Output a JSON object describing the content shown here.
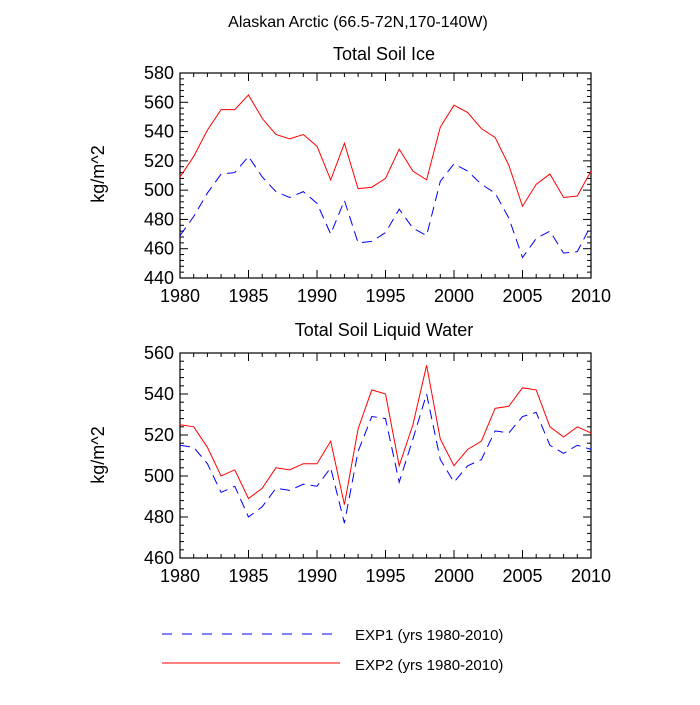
{
  "figure_title": "Alaskan Arctic (66.5-72N,170-140W)",
  "legend": {
    "entries": [
      {
        "label": "EXP1 (yrs 1980-2010)",
        "color": "#0000ff",
        "dash": "dashed"
      },
      {
        "label": "EXP2 (yrs 1980-2010)",
        "color": "#ff0000",
        "dash": "solid"
      }
    ]
  },
  "chart_data": [
    {
      "type": "line",
      "title": "Total Soil Ice",
      "xlabel": "",
      "ylabel": "kg/m^2",
      "xlim": [
        1980,
        2010
      ],
      "ylim": [
        440,
        580
      ],
      "x_ticks": [
        1980,
        1985,
        1990,
        1995,
        2000,
        2005,
        2010
      ],
      "y_ticks": [
        440,
        460,
        480,
        500,
        520,
        540,
        560,
        580
      ],
      "x": [
        1980,
        1981,
        1982,
        1983,
        1984,
        1985,
        1986,
        1987,
        1988,
        1989,
        1990,
        1991,
        1992,
        1993,
        1994,
        1995,
        1996,
        1997,
        1998,
        1999,
        2000,
        2001,
        2002,
        2003,
        2004,
        2005,
        2006,
        2007,
        2008,
        2009,
        2010
      ],
      "series": [
        {
          "name": "EXP1 (yrs 1980-2010)",
          "color": "#0000ff",
          "dash": "dashed",
          "values": [
            469,
            482,
            498,
            511,
            512,
            523,
            509,
            499,
            495,
            499,
            491,
            470,
            493,
            464,
            465,
            471,
            487,
            474,
            469,
            506,
            518,
            513,
            504,
            498,
            481,
            454,
            467,
            472,
            457,
            458,
            476
          ]
        },
        {
          "name": "EXP2 (yrs 1980-2010)",
          "color": "#ff0000",
          "dash": "solid",
          "values": [
            509,
            523,
            541,
            555,
            555,
            565,
            549,
            538,
            535,
            538,
            530,
            507,
            532,
            501,
            502,
            508,
            528,
            513,
            507,
            543,
            558,
            553,
            542,
            536,
            517,
            489,
            504,
            511,
            495,
            496,
            513
          ]
        }
      ]
    },
    {
      "type": "line",
      "title": "Total Soil Liquid Water",
      "xlabel": "",
      "ylabel": "kg/m^2",
      "xlim": [
        1980,
        2010
      ],
      "ylim": [
        460,
        560
      ],
      "x_ticks": [
        1980,
        1985,
        1990,
        1995,
        2000,
        2005,
        2010
      ],
      "y_ticks": [
        460,
        480,
        500,
        520,
        540,
        560
      ],
      "x": [
        1980,
        1981,
        1982,
        1983,
        1984,
        1985,
        1986,
        1987,
        1988,
        1989,
        1990,
        1991,
        1992,
        1993,
        1994,
        1995,
        1996,
        1997,
        1998,
        1999,
        2000,
        2001,
        2002,
        2003,
        2004,
        2005,
        2006,
        2007,
        2008,
        2009,
        2010
      ],
      "series": [
        {
          "name": "EXP1 (yrs 1980-2010)",
          "color": "#0000ff",
          "dash": "dashed",
          "values": [
            515,
            514,
            506,
            492,
            495,
            480,
            485,
            494,
            493,
            496,
            495,
            504,
            477,
            512,
            529,
            528,
            497,
            518,
            540,
            508,
            497,
            505,
            508,
            522,
            521,
            529,
            531,
            515,
            511,
            515,
            513
          ]
        },
        {
          "name": "EXP2 (yrs 1980-2010)",
          "color": "#ff0000",
          "dash": "solid",
          "values": [
            525,
            524,
            514,
            500,
            503,
            489,
            494,
            504,
            503,
            506,
            506,
            517,
            486,
            523,
            542,
            540,
            505,
            525,
            554,
            518,
            505,
            513,
            517,
            533,
            534,
            543,
            542,
            524,
            519,
            524,
            521
          ]
        }
      ]
    }
  ]
}
